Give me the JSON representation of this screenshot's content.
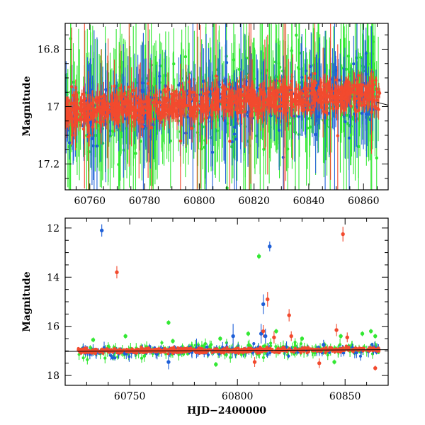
{
  "chart_data": [
    {
      "type": "scatter",
      "title": "",
      "xlabel": "",
      "ylabel": "Magnitude",
      "xlim": [
        60751,
        60869
      ],
      "ylim": [
        17.29,
        16.71
      ],
      "y_inverted": true,
      "x_ticks": [
        60760,
        60780,
        60800,
        60820,
        60840,
        60860
      ],
      "x_tick_labels": [
        "60760",
        "60780",
        "60800",
        "60820",
        "60840",
        "60860"
      ],
      "y_ticks": [
        16.8,
        17,
        17.2
      ],
      "y_tick_labels": [
        "16.8",
        "17",
        "17.2"
      ],
      "grid": false,
      "reference_line": {
        "x": [
          60865,
          60869
        ],
        "y": [
          16.985,
          16.995
        ]
      },
      "series": [
        {
          "color": "#33e833",
          "band": {
            "start": 60751,
            "end": 60866,
            "base_start": 17.02,
            "base_end": 16.95,
            "scatter": 0.06
          }
        },
        {
          "color": "#1e5fd8",
          "band": {
            "start": 60751,
            "end": 60866,
            "base_start": 17.02,
            "base_end": 16.95,
            "scatter": 0.05
          }
        },
        {
          "color": "#f24a2e",
          "band": {
            "start": 60751,
            "end": 60866,
            "base_start": 17.02,
            "base_end": 16.95,
            "scatter": 0.025
          }
        }
      ]
    },
    {
      "type": "scatter",
      "title": "",
      "xlabel": "HJD−2400000",
      "ylabel": "Magnitude",
      "xlim": [
        60720,
        60870
      ],
      "ylim": [
        18.4,
        11.6
      ],
      "y_inverted": true,
      "x_ticks": [
        60750,
        60800,
        60850
      ],
      "x_tick_labels": [
        "60750",
        "60800",
        "60850"
      ],
      "y_ticks": [
        12,
        14,
        16,
        18
      ],
      "y_tick_labels": [
        "12",
        "14",
        "16",
        "18"
      ],
      "grid": false,
      "reference_line": {
        "x": [
          60720,
          60870
        ],
        "y": [
          17.02,
          16.95
        ]
      },
      "series": [
        {
          "color": "#33e833",
          "band": {
            "start": 60726,
            "end": 60866,
            "base_start": 17.0,
            "base_end": 16.95,
            "scatter": 0.12
          },
          "outliers": [
            {
              "x": 60733,
              "y": 16.55,
              "err": 0.1
            },
            {
              "x": 60748,
              "y": 16.4,
              "err": 0.1
            },
            {
              "x": 60768,
              "y": 15.85,
              "err": 0.1
            },
            {
              "x": 60770,
              "y": 16.6,
              "err": 0.1
            },
            {
              "x": 60792,
              "y": 16.5,
              "err": 0.1
            },
            {
              "x": 60805,
              "y": 16.3,
              "err": 0.1
            },
            {
              "x": 60810,
              "y": 13.15,
              "err": 0.12
            },
            {
              "x": 60818,
              "y": 16.2,
              "err": 0.1
            },
            {
              "x": 60830,
              "y": 16.5,
              "err": 0.1
            },
            {
              "x": 60848,
              "y": 16.4,
              "err": 0.1
            },
            {
              "x": 60858,
              "y": 16.3,
              "err": 0.1
            },
            {
              "x": 60862,
              "y": 16.2,
              "err": 0.1
            },
            {
              "x": 60864,
              "y": 16.4,
              "err": 0.1
            },
            {
              "x": 60790,
              "y": 17.55,
              "err": 0.1
            },
            {
              "x": 60845,
              "y": 17.45,
              "err": 0.1
            }
          ]
        },
        {
          "color": "#1e5fd8",
          "band": {
            "start": 60726,
            "end": 60866,
            "base_start": 17.0,
            "base_end": 16.95,
            "scatter": 0.1
          },
          "outliers": [
            {
              "x": 60737,
              "y": 12.1,
              "err": 0.25
            },
            {
              "x": 60768,
              "y": 17.45,
              "err": 0.3
            },
            {
              "x": 60781,
              "y": 16.9,
              "err": 0.4
            },
            {
              "x": 60798,
              "y": 16.4,
              "err": 0.5
            },
            {
              "x": 60811,
              "y": 16.3,
              "err": 0.4
            },
            {
              "x": 60812,
              "y": 15.1,
              "err": 0.4
            },
            {
              "x": 60813,
              "y": 16.4,
              "err": 0.3
            },
            {
              "x": 60815,
              "y": 12.75,
              "err": 0.2
            },
            {
              "x": 60840,
              "y": 16.75,
              "err": 0.2
            }
          ]
        },
        {
          "color": "#f24a2e",
          "band": {
            "start": 60726,
            "end": 60866,
            "base_start": 17.0,
            "base_end": 16.95,
            "scatter": 0.05
          },
          "outliers": [
            {
              "x": 60744,
              "y": 13.8,
              "err": 0.25
            },
            {
              "x": 60814,
              "y": 14.9,
              "err": 0.3
            },
            {
              "x": 60812,
              "y": 16.2,
              "err": 0.25
            },
            {
              "x": 60817,
              "y": 16.45,
              "err": 0.25
            },
            {
              "x": 60824,
              "y": 15.55,
              "err": 0.25
            },
            {
              "x": 60825,
              "y": 16.4,
              "err": 0.2
            },
            {
              "x": 60846,
              "y": 16.15,
              "err": 0.25
            },
            {
              "x": 60849,
              "y": 12.25,
              "err": 0.3
            },
            {
              "x": 60851,
              "y": 16.45,
              "err": 0.2
            },
            {
              "x": 60808,
              "y": 17.45,
              "err": 0.2
            },
            {
              "x": 60838,
              "y": 17.5,
              "err": 0.2
            },
            {
              "x": 60864,
              "y": 17.7,
              "err": 0.1
            }
          ]
        }
      ]
    }
  ]
}
